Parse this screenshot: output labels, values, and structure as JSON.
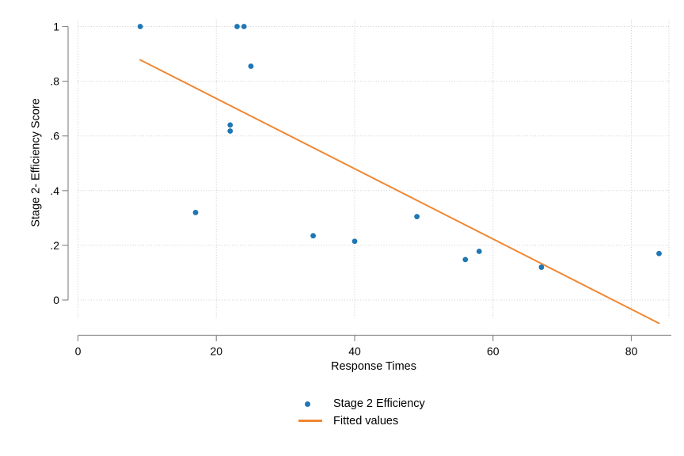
{
  "chart_data": {
    "type": "scatter",
    "title": "",
    "xlabel": "Response Times",
    "ylabel": "Stage 2- Efficiency Score",
    "xlim": [
      0,
      85.4
    ],
    "ylim": [
      -0.067,
      1.025
    ],
    "xticks": [
      0,
      20,
      40,
      60,
      80
    ],
    "xtick_labels": [
      "0",
      "20",
      "40",
      "60",
      "80"
    ],
    "yticks": [
      0,
      0.2,
      0.4,
      0.6,
      0.8,
      1
    ],
    "ytick_labels": [
      "0",
      ".2",
      ".4",
      ".6",
      ".8",
      "1"
    ],
    "grid": "dotted gridlines at all x and y ticks",
    "legend_position": "bottom-center",
    "series": [
      {
        "name": "Stage 2 Efficiency",
        "type": "scatter",
        "color": "#1f77b4",
        "points": [
          [
            9,
            1.0
          ],
          [
            23,
            1.0
          ],
          [
            24,
            1.0
          ],
          [
            25,
            0.855
          ],
          [
            22,
            0.64
          ],
          [
            22,
            0.618
          ],
          [
            17,
            0.32
          ],
          [
            34,
            0.235
          ],
          [
            40,
            0.215
          ],
          [
            49,
            0.305
          ],
          [
            56,
            0.148
          ],
          [
            58,
            0.178
          ],
          [
            67,
            0.12
          ],
          [
            84,
            0.17
          ]
        ]
      },
      {
        "name": "Fitted values",
        "type": "line",
        "color": "#ef8733",
        "points": [
          [
            9,
            0.878
          ],
          [
            84,
            -0.085
          ]
        ]
      }
    ],
    "colors": {
      "grid": "#cccccc",
      "axis": "#8c8c8c",
      "text": "#000000"
    }
  },
  "legend": {
    "items": [
      {
        "label": "Stage 2 Efficiency",
        "marker": "dot-icon",
        "color": "#1f77b4"
      },
      {
        "label": "Fitted values",
        "marker": "line-icon",
        "color": "#ef8733"
      }
    ]
  }
}
